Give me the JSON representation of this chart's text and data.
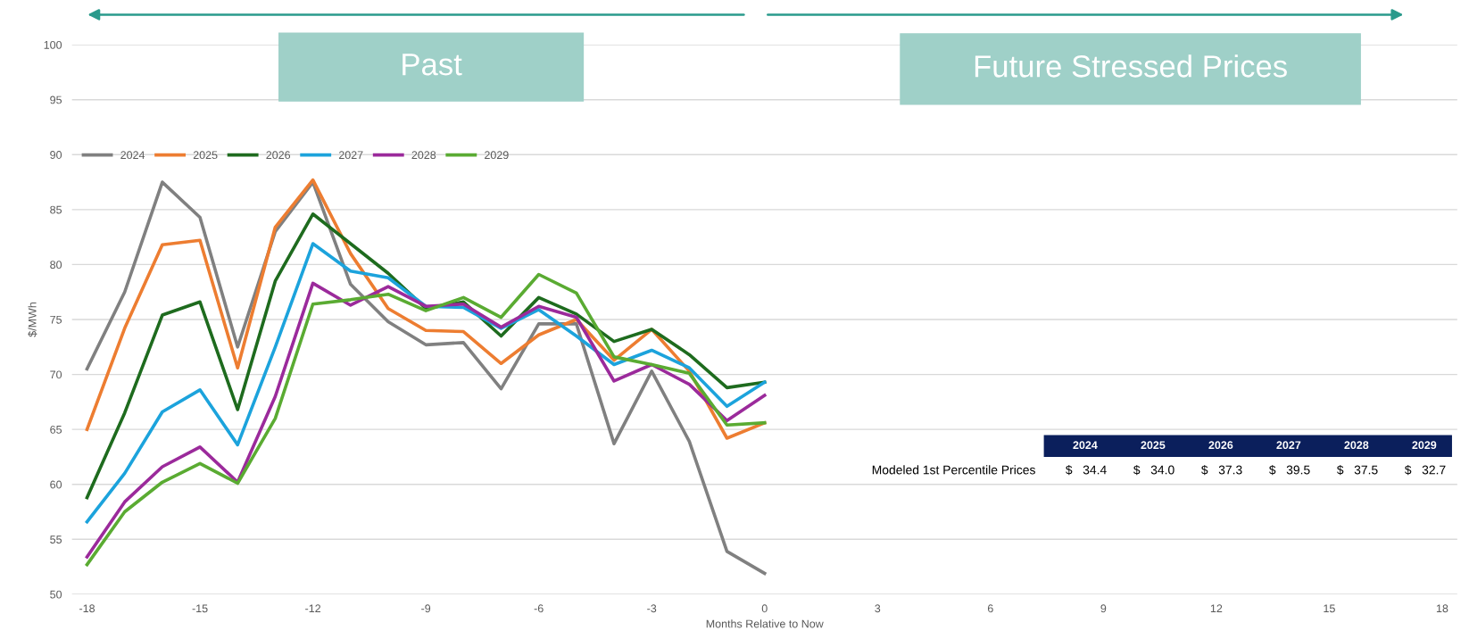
{
  "chart_data": {
    "type": "line",
    "xlabel": "Months Relative to Now",
    "ylabel": "$/MWh",
    "x": [
      -18,
      -17,
      -16,
      -15,
      -14,
      -13,
      -12,
      -11,
      -10,
      -9,
      -8,
      -7,
      -6,
      -5,
      -4,
      -3,
      -2,
      -1,
      0
    ],
    "xlim": [
      -18.4,
      18.4
    ],
    "xticks": [
      -18,
      -15,
      -12,
      -9,
      -6,
      -3,
      0,
      3,
      6,
      9,
      12,
      15,
      18
    ],
    "ylim": [
      50,
      100
    ],
    "yticks": [
      50,
      55,
      60,
      65,
      70,
      75,
      80,
      85,
      90,
      95,
      100
    ],
    "grid": "y",
    "legend": "top left",
    "marker": "none",
    "line_style": "solid",
    "series": [
      {
        "name": "2024",
        "color": "#808080",
        "values": [
          70.5,
          77.5,
          87.5,
          84.3,
          72.5,
          83,
          87.5,
          78.2,
          74.8,
          72.7,
          72.9,
          68.7,
          74.6,
          74.6,
          63.7,
          70.3,
          63.9,
          53.9,
          51.9
        ]
      },
      {
        "name": "2025",
        "color": "#ed7d31",
        "values": [
          65,
          74.2,
          81.8,
          82.2,
          70.6,
          83.4,
          87.7,
          81,
          76,
          74,
          73.9,
          71,
          73.6,
          75,
          71.3,
          74.1,
          70.3,
          64.2,
          65.6
        ]
      },
      {
        "name": "2026",
        "color": "#1e6b1e",
        "values": [
          58.8,
          66.5,
          75.4,
          76.6,
          66.8,
          78.5,
          84.6,
          81.9,
          79.2,
          76,
          76.6,
          73.5,
          77,
          75.5,
          73,
          74.1,
          71.8,
          68.8,
          69.3
        ]
      },
      {
        "name": "2027",
        "color": "#1ca3dc",
        "values": [
          56.6,
          61,
          66.6,
          68.6,
          63.6,
          72.5,
          81.9,
          79.4,
          78.8,
          76.2,
          76.1,
          74.2,
          75.9,
          73.5,
          70.9,
          72.2,
          70.6,
          67.1,
          69.3
        ]
      },
      {
        "name": "2028",
        "color": "#9b2a9b",
        "values": [
          53.4,
          58.4,
          61.6,
          63.4,
          60.2,
          68,
          78.3,
          76.3,
          78,
          76.2,
          76.4,
          74.3,
          76.2,
          75.2,
          69.4,
          70.9,
          69.1,
          65.8,
          68.1
        ]
      },
      {
        "name": "2029",
        "color": "#5aab32",
        "values": [
          52.7,
          57.5,
          60.2,
          61.9,
          60.1,
          66,
          76.4,
          76.8,
          77.3,
          75.8,
          77,
          75.2,
          79.1,
          77.4,
          71.6,
          70.9,
          70.1,
          65.4,
          65.6
        ]
      }
    ],
    "annotations": [
      "Past",
      "Future Stressed Prices",
      "2024",
      "2025",
      "2026",
      "2027",
      "2028",
      "2029",
      "Modeled 1st Percentile Prices",
      "$   34.4",
      "$   34.0",
      "$   37.3",
      "$   39.5",
      "$   37.5",
      "$   32.7"
    ]
  }
}
